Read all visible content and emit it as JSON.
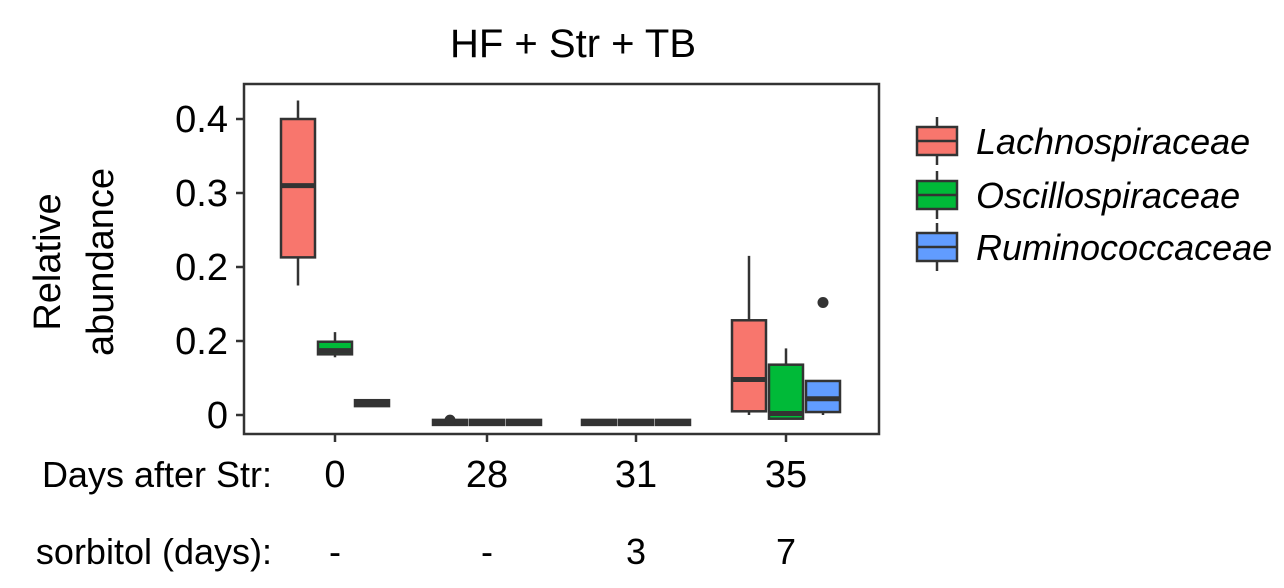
{
  "chart_data": {
    "type": "box",
    "title": "HF + Str + TB",
    "ylabel_lines": [
      "Relative",
      "abundance"
    ],
    "ytick_labels": [
      "0",
      "0.2",
      "0.2",
      "0.3",
      "0.4"
    ],
    "xtick_labels": [
      "0",
      "28",
      "31",
      "35"
    ],
    "row_labels": {
      "days": "Days after Str:",
      "sorbitol": "sorbitol (days):"
    },
    "sorbitol_values": [
      "-",
      "-",
      "3",
      "7"
    ],
    "legend_position": "right",
    "series": [
      {
        "name": "Lachnospiraceae",
        "color": "#F8766D",
        "boxes": [
          {
            "whisker_low": 0.175,
            "q1": 0.213,
            "median": 0.31,
            "q3": 0.4,
            "whisker_high": 0.425
          },
          {
            "whisker_low": -0.01,
            "q1": -0.01,
            "median": -0.01,
            "q3": -0.01,
            "whisker_high": -0.01,
            "outliers": [
              -0.007
            ]
          },
          {
            "whisker_low": -0.01,
            "q1": -0.01,
            "median": -0.01,
            "q3": -0.01,
            "whisker_high": -0.01
          },
          {
            "whisker_low": 0.0,
            "q1": 0.005,
            "median": 0.048,
            "q3": 0.128,
            "whisker_high": 0.215
          }
        ]
      },
      {
        "name": "Oscillospiraceae",
        "color": "#00BA38",
        "boxes": [
          {
            "whisker_low": 0.078,
            "q1": 0.082,
            "median": 0.087,
            "q3": 0.099,
            "whisker_high": 0.112
          },
          {
            "whisker_low": -0.01,
            "q1": -0.01,
            "median": -0.01,
            "q3": -0.01,
            "whisker_high": -0.01
          },
          {
            "whisker_low": -0.01,
            "q1": -0.01,
            "median": -0.01,
            "q3": -0.01,
            "whisker_high": -0.01
          },
          {
            "whisker_low": -0.005,
            "q1": -0.005,
            "median": 0.002,
            "q3": 0.068,
            "whisker_high": 0.09
          }
        ]
      },
      {
        "name": "Ruminococcaceae",
        "color": "#619CFF",
        "boxes": [
          {
            "whisker_low": 0.012,
            "q1": 0.012,
            "median": 0.016,
            "q3": 0.02,
            "whisker_high": 0.02
          },
          {
            "whisker_low": -0.01,
            "q1": -0.01,
            "median": -0.01,
            "q3": -0.01,
            "whisker_high": -0.01
          },
          {
            "whisker_low": -0.01,
            "q1": -0.01,
            "median": -0.01,
            "q3": -0.01,
            "whisker_high": -0.01
          },
          {
            "whisker_low": 0.0,
            "q1": 0.004,
            "median": 0.022,
            "q3": 0.046,
            "whisker_high": 0.046,
            "outliers": [
              0.152
            ]
          }
        ]
      }
    ],
    "ylim": [
      -0.025,
      0.445
    ],
    "grid": false
  }
}
